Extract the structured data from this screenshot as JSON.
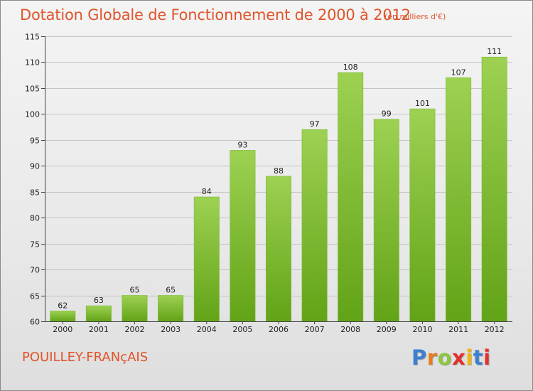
{
  "header": {
    "title": "Dotation Globale de Fonctionnement de 2000 à 2012",
    "unit": "(en milliers d'€)"
  },
  "footer": {
    "commune": "POUILLEY-FRANçAIS",
    "logo_text": "Proxiti",
    "logo_colors": [
      "#3b7fd0",
      "#e87b1e",
      "#8dc63f",
      "#e2312d",
      "#f2b705",
      "#3b7fd0",
      "#e2312d"
    ]
  },
  "colors": {
    "bar_top": "#9dd152",
    "bar_bottom": "#62a317",
    "title": "#e0542a"
  },
  "chart_data": {
    "type": "bar",
    "title": "Dotation Globale de Fonctionnement de 2000 à 2012",
    "xlabel": "",
    "ylabel": "",
    "categories": [
      "2000",
      "2001",
      "2002",
      "2003",
      "2004",
      "2005",
      "2006",
      "2007",
      "2008",
      "2009",
      "2010",
      "2011",
      "2012"
    ],
    "values": [
      62,
      63,
      65,
      65,
      84,
      93,
      88,
      97,
      108,
      99,
      101,
      107,
      111
    ],
    "labels": [
      "62",
      "63",
      "65",
      "65",
      "84",
      "93",
      "88",
      "97",
      "108",
      "99",
      "101",
      "107",
      "111"
    ],
    "ylim": [
      60,
      115
    ],
    "yticks": [
      60,
      65,
      70,
      75,
      80,
      85,
      90,
      95,
      100,
      105,
      110,
      115
    ],
    "grid": true
  }
}
